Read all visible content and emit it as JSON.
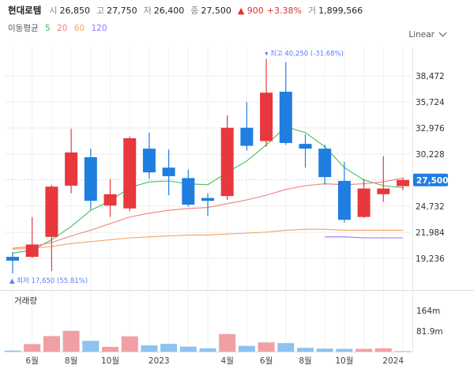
{
  "header": {
    "name": "현대로템",
    "open_label": "시",
    "open": "26,850",
    "high_label": "고",
    "high": "27,750",
    "low_label": "저",
    "low": "26,400",
    "close_label": "종",
    "close": "27,500",
    "change": "▲ 900",
    "change_pct": "+3.38%",
    "volume_label": "거",
    "volume": "1,899,566"
  },
  "ma_legend": {
    "label": "이동평균",
    "items": [
      {
        "period": "5",
        "color": "#40c057"
      },
      {
        "period": "20",
        "color": "#f08080"
      },
      {
        "period": "60",
        "color": "#f4a460"
      },
      {
        "period": "120",
        "color": "#9775fa"
      }
    ]
  },
  "scale_mode": "Linear",
  "colors": {
    "up": "#e8383d",
    "down": "#1f7ee0",
    "vol_up": "#f0a0a4",
    "vol_down": "#8ec2f0",
    "annotation": "#5c7cfa",
    "badge": "#1f7ee0"
  },
  "chart_data": {
    "type": "candlestick",
    "x_tick_labels": [
      {
        "label": "6월",
        "index": 1
      },
      {
        "label": "8월",
        "index": 3
      },
      {
        "label": "10월",
        "index": 5
      },
      {
        "label": "2023",
        "index": 7.5
      },
      {
        "label": "4월",
        "index": 11
      },
      {
        "label": "6월",
        "index": 13
      },
      {
        "label": "8월",
        "index": 15
      },
      {
        "label": "10월",
        "index": 17
      },
      {
        "label": "2024",
        "index": 19.5
      }
    ],
    "candles": [
      {
        "o": 19400,
        "h": 19900,
        "l": 17650,
        "c": 19000
      },
      {
        "o": 19400,
        "h": 23600,
        "l": 19300,
        "c": 20700
      },
      {
        "o": 21500,
        "h": 27000,
        "l": 17900,
        "c": 26800
      },
      {
        "o": 26900,
        "h": 32900,
        "l": 26100,
        "c": 30400
      },
      {
        "o": 29900,
        "h": 30800,
        "l": 24400,
        "c": 25300
      },
      {
        "o": 24800,
        "h": 27600,
        "l": 23600,
        "c": 26000
      },
      {
        "o": 24500,
        "h": 32100,
        "l": 24200,
        "c": 31900
      },
      {
        "o": 30800,
        "h": 32500,
        "l": 27600,
        "c": 28300
      },
      {
        "o": 28800,
        "h": 30700,
        "l": 25900,
        "c": 27900
      },
      {
        "o": 27700,
        "h": 28600,
        "l": 24700,
        "c": 24900
      },
      {
        "o": 25600,
        "h": 26100,
        "l": 23700,
        "c": 25300
      },
      {
        "o": 25800,
        "h": 34300,
        "l": 25400,
        "c": 33000
      },
      {
        "o": 33000,
        "h": 35700,
        "l": 30600,
        "c": 31100
      },
      {
        "o": 31600,
        "h": 40250,
        "l": 31000,
        "c": 36700
      },
      {
        "o": 36800,
        "h": 39900,
        "l": 31200,
        "c": 31400
      },
      {
        "o": 31300,
        "h": 32300,
        "l": 28800,
        "c": 30800
      },
      {
        "o": 30800,
        "h": 31200,
        "l": 27000,
        "c": 27800
      },
      {
        "o": 27400,
        "h": 29400,
        "l": 23000,
        "c": 23300
      },
      {
        "o": 23600,
        "h": 27600,
        "l": 23500,
        "c": 26600
      },
      {
        "o": 26000,
        "h": 30000,
        "l": 25200,
        "c": 26600
      },
      {
        "o": 26850,
        "h": 27750,
        "l": 26400,
        "c": 27500
      }
    ],
    "moving_averages": [
      {
        "period": 5,
        "color": "#40c057",
        "values": [
          19800,
          20100,
          21200,
          22600,
          24300,
          25300,
          26700,
          27300,
          27400,
          27100,
          27000,
          28300,
          29500,
          31200,
          33100,
          32500,
          31000,
          28800,
          27500,
          26900,
          26700
        ]
      },
      {
        "period": 20,
        "color": "#f08080",
        "values": [
          20300,
          20500,
          20900,
          21600,
          22200,
          22900,
          23600,
          24000,
          24300,
          24500,
          24600,
          25000,
          25400,
          25900,
          26500,
          26900,
          27100,
          27000,
          27100,
          27300,
          27700
        ]
      },
      {
        "period": 60,
        "color": "#f4a460",
        "values": [
          20200,
          20300,
          20500,
          20800,
          21000,
          21200,
          21400,
          21500,
          21600,
          21700,
          21700,
          21800,
          21900,
          22000,
          22200,
          22300,
          22300,
          22200,
          22200,
          22200,
          22200
        ]
      },
      {
        "period": 120,
        "color": "#9775fa",
        "values": [
          null,
          null,
          null,
          null,
          null,
          null,
          null,
          null,
          null,
          null,
          null,
          null,
          null,
          null,
          null,
          null,
          21500,
          21500,
          21400,
          21400,
          21400
        ]
      }
    ],
    "volume": [
      4,
      30,
      62,
      83,
      43,
      19,
      61,
      25,
      31,
      20,
      13,
      70,
      23,
      37,
      34,
      15,
      12,
      11,
      11,
      13,
      2
    ],
    "y_ticks": [
      "38,472",
      "35,724",
      "32,976",
      "30,228",
      "24,732",
      "21,984",
      "19,236"
    ],
    "y_tick_values": [
      38472,
      35724,
      32976,
      30228,
      24732,
      21984,
      19236
    ],
    "current_price": {
      "label": "27,500",
      "value": 27500
    },
    "max_annotation": "▾ 최고 40,250 (-31.68%)",
    "min_annotation": "▲ 최저 17,650 (55.81%)",
    "volume_title": "거래량",
    "volume_ticks": [
      "164m",
      "81.9m"
    ],
    "volume_tick_values": [
      164,
      81.9
    ]
  }
}
